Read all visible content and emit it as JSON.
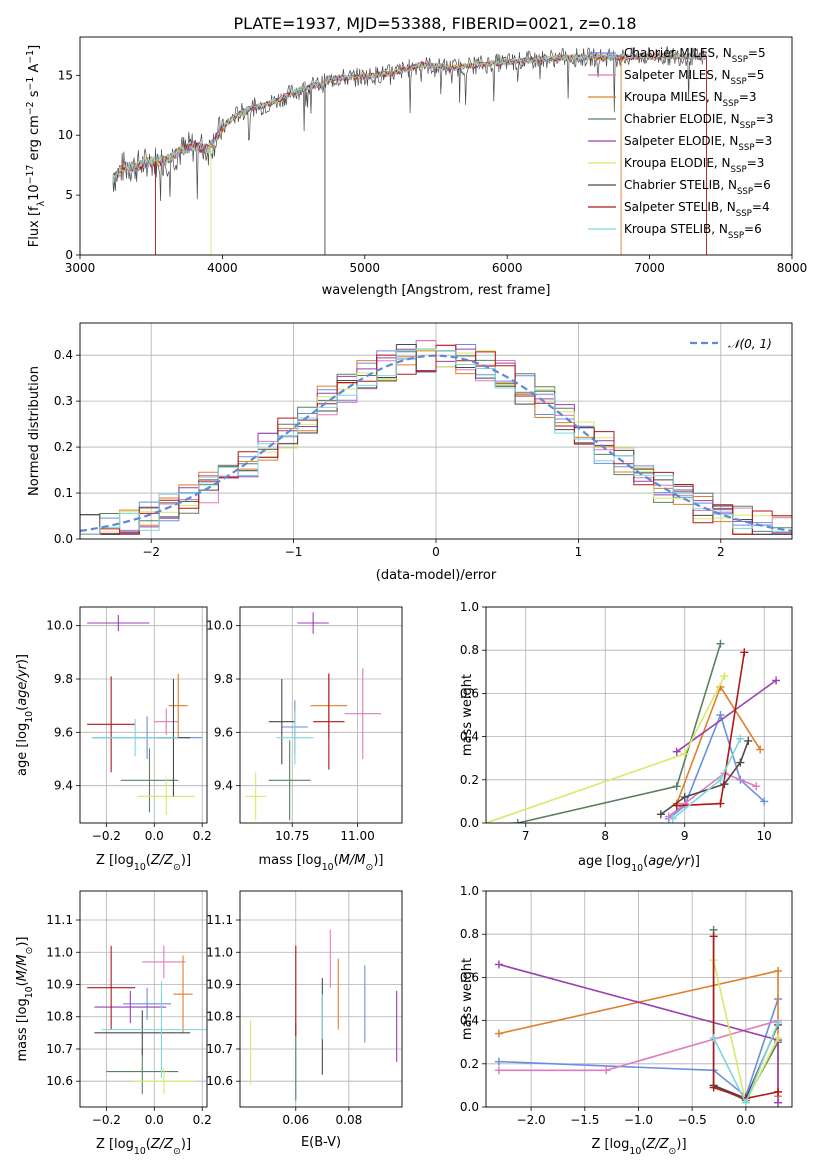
{
  "figure": {
    "title": "PLATE=1937, MJD=53388, FIBERID=0021, z=0.18",
    "series_colors": [
      "#6a8fe0",
      "#e07bbd",
      "#e07f2a",
      "#5a8060",
      "#9a40b0",
      "#d9e86a",
      "#4a4a4a",
      "#b01818",
      "#7fd6de"
    ]
  },
  "chart_data": [
    {
      "id": "spectrum",
      "type": "line",
      "xlabel": "wavelength [Angstrom, rest frame]",
      "ylabel": "Flux [f_λ10^-17 erg cm^-2 s^-1 A^-1]",
      "xlim": [
        3000,
        8000
      ],
      "ylim": [
        0,
        18.2
      ],
      "xticks": [
        3000,
        4000,
        5000,
        6000,
        7000,
        8000
      ],
      "yticks": [
        0,
        5,
        10,
        15
      ],
      "grid": false,
      "legend_position": "right",
      "x": [
        3230,
        3300,
        3400,
        3500,
        3600,
        3700,
        3800,
        3900,
        4000,
        4100,
        4200,
        4300,
        4400,
        4500,
        4600,
        4700,
        4800,
        4900,
        5000,
        5200,
        5400,
        5600,
        5800,
        6000,
        6200,
        6400,
        6600,
        6800,
        7000,
        7200,
        7400
      ],
      "series": [
        {
          "name": "Chabrier MILES, N_SSP=5",
          "values": [
            6.3,
            7.3,
            7.4,
            7.8,
            7.9,
            8.6,
            9.1,
            8.8,
            10.6,
            11.7,
            12.3,
            12.5,
            13.0,
            13.6,
            14.0,
            14.3,
            14.8,
            14.8,
            14.9,
            15.2,
            15.9,
            15.6,
            15.9,
            16.1,
            16.3,
            16.5,
            16.5,
            16.5,
            16.6,
            16.6,
            16.5
          ]
        },
        {
          "name": "Salpeter MILES, N_SSP=5"
        },
        {
          "name": "Kroupa MILES, N_SSP=3"
        },
        {
          "name": "Chabrier ELODIE, N_SSP=3"
        },
        {
          "name": "Salpeter ELODIE, N_SSP=3"
        },
        {
          "name": "Kroupa ELODIE, N_SSP=3"
        },
        {
          "name": "Chabrier STELIB, N_SSP=6"
        },
        {
          "name": "Salpeter STELIB, N_SSP=4"
        },
        {
          "name": "Kroupa STELIB, N_SSP=6"
        }
      ]
    },
    {
      "id": "residuals",
      "type": "bar",
      "xlabel": "(data-model)/error",
      "ylabel": "Normed distribution",
      "xlim": [
        -2.5,
        2.5
      ],
      "ylim": [
        0,
        0.47
      ],
      "xticks": [
        -2,
        -1,
        0,
        1,
        2
      ],
      "yticks": [
        0.0,
        0.1,
        0.2,
        0.3,
        0.4
      ],
      "grid": true,
      "legend_position": "top-right",
      "reference_curve": {
        "name": "𝒩(0, 1)",
        "mean": 0,
        "sigma": 1
      }
    },
    {
      "id": "age-vs-Z",
      "type": "scatter",
      "xlabel": "Z [log10(Z/Z⊙)]",
      "ylabel": "age  [log10(age/yr)]",
      "xlim": [
        -0.31,
        0.22
      ],
      "ylim": [
        9.26,
        10.07
      ],
      "xticks": [
        -0.2,
        0.0,
        0.2
      ],
      "yticks": [
        9.4,
        9.6,
        9.8,
        10.0
      ],
      "grid": true,
      "points": [
        {
          "x": -0.03,
          "y": 9.58,
          "xerr": 0.23,
          "yerr": 0.08
        },
        {
          "x": 0.05,
          "y": 9.64,
          "xerr": 0.05,
          "yerr": 0.05
        },
        {
          "x": 0.1,
          "y": 9.7,
          "xerr": 0.04,
          "yerr": 0.12
        },
        {
          "x": -0.02,
          "y": 9.42,
          "xerr": 0.12,
          "yerr": 0.12
        },
        {
          "x": -0.15,
          "y": 10.01,
          "xerr": 0.13,
          "yerr": 0.03
        },
        {
          "x": 0.05,
          "y": 9.36,
          "xerr": 0.12,
          "yerr": 0.07
        },
        {
          "x": 0.08,
          "y": 9.58,
          "xerr": 0.07,
          "yerr": 0.22
        },
        {
          "x": -0.18,
          "y": 9.63,
          "xerr": 0.1,
          "yerr": 0.18
        },
        {
          "x": -0.08,
          "y": 9.58,
          "xerr": 0.18,
          "yerr": 0.07
        }
      ]
    },
    {
      "id": "age-vs-mass",
      "type": "scatter",
      "xlabel": "mass [log10(M/M⊙)]",
      "ylabel": "",
      "xlim": [
        10.55,
        11.17
      ],
      "ylim": [
        9.26,
        10.07
      ],
      "xticks": [
        10.75,
        11.0
      ],
      "xticklabels": [
        "10.75",
        "11.00"
      ],
      "yticks": [
        9.4,
        9.6,
        9.8,
        10.0
      ],
      "grid": true,
      "points": [
        {
          "x": 10.76,
          "y": 9.62,
          "xerr": 0.05,
          "yerr": 0.1
        },
        {
          "x": 11.02,
          "y": 9.67,
          "xerr": 0.07,
          "yerr": 0.17
        },
        {
          "x": 10.89,
          "y": 9.7,
          "xerr": 0.07,
          "yerr": 0.12
        },
        {
          "x": 10.74,
          "y": 9.42,
          "xerr": 0.08,
          "yerr": 0.15
        },
        {
          "x": 10.83,
          "y": 10.01,
          "xerr": 0.06,
          "yerr": 0.04
        },
        {
          "x": 10.61,
          "y": 9.36,
          "xerr": 0.04,
          "yerr": 0.09
        },
        {
          "x": 10.71,
          "y": 9.64,
          "xerr": 0.05,
          "yerr": 0.16
        },
        {
          "x": 10.89,
          "y": 9.64,
          "xerr": 0.06,
          "yerr": 0.18
        },
        {
          "x": 10.76,
          "y": 9.58,
          "xerr": 0.07,
          "yerr": 0.1
        }
      ]
    },
    {
      "id": "mass-weight-vs-age",
      "type": "line",
      "xlabel": "age  [log10(age/yr)]",
      "ylabel": "mass weight",
      "xlim": [
        6.5,
        10.35
      ],
      "ylim": [
        0,
        1.0
      ],
      "xticks": [
        7,
        8,
        9,
        10
      ],
      "yticks": [
        0.0,
        0.2,
        0.4,
        0.6,
        0.8,
        1.0
      ],
      "grid": true,
      "series": [
        {
          "x": [
            8.8,
            9.0,
            9.45,
            9.7,
            10.0
          ],
          "y": [
            0.02,
            0.08,
            0.5,
            0.2,
            0.1
          ]
        },
        {
          "x": [
            8.8,
            9.0,
            9.5,
            9.9
          ],
          "y": [
            0.03,
            0.09,
            0.23,
            0.17
          ]
        },
        {
          "x": [
            8.9,
            9.45,
            9.95
          ],
          "y": [
            0.09,
            0.63,
            0.34
          ]
        },
        {
          "x": [
            6.9,
            8.9,
            9.45
          ],
          "y": [
            0.0,
            0.17,
            0.83
          ]
        },
        {
          "x": [
            8.9,
            10.15
          ],
          "y": [
            0.33,
            0.66
          ]
        },
        {
          "x": [
            6.5,
            9.0,
            9.5
          ],
          "y": [
            0.0,
            0.32,
            0.68
          ]
        },
        {
          "x": [
            8.7,
            9.0,
            9.5,
            9.7,
            9.8
          ],
          "y": [
            0.04,
            0.12,
            0.18,
            0.28,
            0.38
          ]
        },
        {
          "x": [
            8.9,
            9.45,
            9.75
          ],
          "y": [
            0.08,
            0.09,
            0.79
          ]
        },
        {
          "x": [
            8.85,
            9.45,
            9.7
          ],
          "y": [
            0.02,
            0.2,
            0.39
          ]
        }
      ]
    },
    {
      "id": "mass-vs-Z",
      "type": "scatter",
      "xlabel": "Z [log10(Z/Z⊙)]",
      "ylabel": "mass [log10(M/M⊙)]",
      "xlim": [
        -0.31,
        0.22
      ],
      "ylim": [
        10.52,
        11.19
      ],
      "xticks": [
        -0.2,
        0.0,
        0.2
      ],
      "yticks": [
        10.6,
        10.7,
        10.8,
        10.9,
        11.0,
        11.1
      ],
      "grid": true,
      "points": [
        {
          "x": -0.03,
          "y": 10.84,
          "xerr": 0.1,
          "yerr": 0.05
        },
        {
          "x": 0.04,
          "y": 10.97,
          "xerr": 0.09,
          "yerr": 0.05
        },
        {
          "x": 0.12,
          "y": 10.87,
          "xerr": 0.04,
          "yerr": 0.12
        },
        {
          "x": -0.05,
          "y": 10.63,
          "xerr": 0.15,
          "yerr": 0.07
        },
        {
          "x": -0.1,
          "y": 10.83,
          "xerr": 0.15,
          "yerr": 0.05
        },
        {
          "x": 0.04,
          "y": 10.6,
          "xerr": 0.13,
          "yerr": 0.04
        },
        {
          "x": -0.05,
          "y": 10.75,
          "xerr": 0.2,
          "yerr": 0.07
        },
        {
          "x": -0.18,
          "y": 10.89,
          "xerr": 0.1,
          "yerr": 0.13
        },
        {
          "x": 0.03,
          "y": 10.76,
          "xerr": 0.25,
          "yerr": 0.15
        }
      ]
    },
    {
      "id": "mass-vs-ebv",
      "type": "scatter",
      "xlabel": "E(B-V)",
      "ylabel": "",
      "xlim": [
        0.039,
        0.1
      ],
      "ylim": [
        10.52,
        11.19
      ],
      "xticks": [
        0.06,
        0.08
      ],
      "yticks": [
        10.6,
        10.7,
        10.8,
        10.9,
        11.0,
        11.1
      ],
      "grid": true,
      "points": [
        {
          "x": 0.086,
          "y": 10.84,
          "yerr": 0.12
        },
        {
          "x": 0.073,
          "y": 10.98,
          "yerr": 0.09
        },
        {
          "x": 0.076,
          "y": 10.87,
          "yerr": 0.11
        },
        {
          "x": 0.06,
          "y": 10.66,
          "yerr": 0.12
        },
        {
          "x": 0.098,
          "y": 10.77,
          "yerr": 0.11
        },
        {
          "x": 0.043,
          "y": 10.69,
          "yerr": 0.1
        },
        {
          "x": 0.07,
          "y": 10.77,
          "yerr": 0.15
        },
        {
          "x": 0.06,
          "y": 10.88,
          "yerr": 0.14
        },
        {
          "x": 0.07,
          "y": 10.8,
          "yerr": 0.07
        }
      ]
    },
    {
      "id": "mass-weight-vs-Z",
      "type": "line",
      "xlabel": "Z [log10(Z/Z⊙)]",
      "ylabel": "mass weight",
      "xlim": [
        -2.42,
        0.43
      ],
      "ylim": [
        0,
        1.0
      ],
      "xticks": [
        -2.0,
        -1.5,
        -1.0,
        -0.5,
        0.0
      ],
      "yticks": [
        0.0,
        0.2,
        0.4,
        0.6,
        0.8,
        1.0
      ],
      "grid": true,
      "series": [
        {
          "x": [
            -2.3,
            -0.3,
            0.0,
            0.3
          ],
          "y": [
            0.21,
            0.17,
            0.05,
            0.5
          ]
        },
        {
          "x": [
            -2.3,
            -1.3,
            0.3
          ],
          "y": [
            0.17,
            0.17,
            0.4
          ]
        },
        {
          "x": [
            -2.3,
            0.3,
            0.3
          ],
          "y": [
            0.34,
            0.63,
            0.05
          ]
        },
        {
          "x": [
            -0.3,
            -0.3,
            0.0,
            0.3
          ],
          "y": [
            0.82,
            0.1,
            0.03,
            0.3
          ]
        },
        {
          "x": [
            -2.3,
            0.3,
            0.3
          ],
          "y": [
            0.66,
            0.31,
            0.02
          ]
        },
        {
          "x": [
            -0.3,
            0.0,
            0.3
          ],
          "y": [
            0.68,
            0.02,
            0.32
          ]
        },
        {
          "x": [
            -0.3,
            0.0,
            0.3
          ],
          "y": [
            0.1,
            0.04,
            0.38
          ]
        },
        {
          "x": [
            -0.3,
            -0.3,
            0.0,
            0.3
          ],
          "y": [
            0.79,
            0.09,
            0.04,
            0.07
          ]
        },
        {
          "x": [
            -0.3,
            0.0,
            0.3
          ],
          "y": [
            0.32,
            0.02,
            0.39
          ]
        }
      ]
    }
  ]
}
